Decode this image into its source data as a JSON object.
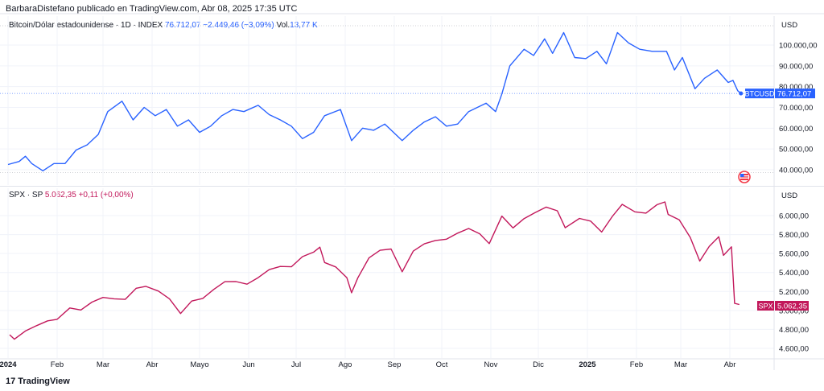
{
  "header": {
    "attribution": "BarbaraDistefano publicado en TradingView.com, Abr 08, 2025 17:35 UTC"
  },
  "btc_legend": {
    "name": "Bitcoin/Dólar estadounidense · 1D · INDEX",
    "value": "76.712,07",
    "change": "−2.449,46 (−3,09%)",
    "vol_label": "Vol.",
    "vol_value": "13,77 K"
  },
  "spx_legend": {
    "name": "SPX · SP",
    "value": "5.062,35",
    "change": "+0,11 (+0,00%)"
  },
  "btc_axis": {
    "currency": "USD",
    "ticks": [
      "100.000,00",
      "90.000,00",
      "80.000,00",
      "70.000,00",
      "60.000,00",
      "50.000,00",
      "40.000,00"
    ],
    "last_label": "BTCUSD",
    "last_value": "76.712,07"
  },
  "spx_axis": {
    "currency": "USD",
    "ticks": [
      "6.000,00",
      "5.800,00",
      "5.600,00",
      "5.400,00",
      "5.200,00",
      "5.000,00",
      "4.800,00",
      "4.600,00"
    ],
    "last_label": "SPX",
    "last_value": "5.062,35"
  },
  "x_axis": {
    "labels": [
      "2024",
      "Feb",
      "Mar",
      "Abr",
      "Mayo",
      "Jun",
      "Jul",
      "Ago",
      "Sep",
      "Oct",
      "Nov",
      "Dic",
      "2025",
      "Feb",
      "Mar",
      "Abr"
    ]
  },
  "footer": {
    "logo_mark": "17",
    "logo_text": "TradingView"
  },
  "colors": {
    "btc": "#2962ff",
    "spx": "#c2185b",
    "grid": "#f0f3fa",
    "axis_border": "#e0e3eb"
  },
  "chart_data": [
    {
      "type": "line",
      "series": [
        {
          "name": "BTCUSD",
          "points": [
            [
              "2024-01-01",
              42500
            ],
            [
              "2024-01-08",
              44000
            ],
            [
              "2024-01-12",
              46500
            ],
            [
              "2024-01-16",
              43000
            ],
            [
              "2024-01-23",
              39500
            ],
            [
              "2024-01-30",
              43000
            ],
            [
              "2024-02-06",
              43000
            ],
            [
              "2024-02-13",
              49500
            ],
            [
              "2024-02-20",
              52000
            ],
            [
              "2024-02-27",
              57000
            ],
            [
              "2024-03-04",
              68000
            ],
            [
              "2024-03-13",
              73000
            ],
            [
              "2024-03-20",
              64000
            ],
            [
              "2024-03-27",
              70000
            ],
            [
              "2024-04-03",
              66000
            ],
            [
              "2024-04-10",
              69000
            ],
            [
              "2024-04-17",
              61000
            ],
            [
              "2024-04-24",
              64000
            ],
            [
              "2024-05-01",
              58000
            ],
            [
              "2024-05-08",
              61000
            ],
            [
              "2024-05-15",
              66000
            ],
            [
              "2024-05-22",
              69000
            ],
            [
              "2024-05-29",
              68000
            ],
            [
              "2024-06-07",
              71000
            ],
            [
              "2024-06-14",
              66500
            ],
            [
              "2024-06-21",
              64000
            ],
            [
              "2024-06-28",
              61000
            ],
            [
              "2024-07-05",
              55000
            ],
            [
              "2024-07-12",
              58000
            ],
            [
              "2024-07-19",
              66000
            ],
            [
              "2024-07-29",
              69000
            ],
            [
              "2024-08-05",
              54000
            ],
            [
              "2024-08-12",
              60000
            ],
            [
              "2024-08-19",
              59000
            ],
            [
              "2024-08-26",
              62000
            ],
            [
              "2024-09-06",
              54000
            ],
            [
              "2024-09-13",
              59000
            ],
            [
              "2024-09-20",
              63000
            ],
            [
              "2024-09-27",
              65500
            ],
            [
              "2024-10-04",
              61000
            ],
            [
              "2024-10-11",
              62000
            ],
            [
              "2024-10-18",
              68000
            ],
            [
              "2024-10-29",
              72000
            ],
            [
              "2024-11-04",
              68000
            ],
            [
              "2024-11-08",
              76500
            ],
            [
              "2024-11-13",
              90000
            ],
            [
              "2024-11-22",
              98000
            ],
            [
              "2024-11-28",
              95000
            ],
            [
              "2024-12-05",
              103000
            ],
            [
              "2024-12-10",
              96000
            ],
            [
              "2024-12-17",
              106000
            ],
            [
              "2024-12-24",
              94000
            ],
            [
              "2024-12-31",
              93500
            ],
            [
              "2025-01-07",
              97000
            ],
            [
              "2025-01-13",
              91000
            ],
            [
              "2025-01-20",
              106000
            ],
            [
              "2025-01-27",
              101000
            ],
            [
              "2025-02-03",
              98000
            ],
            [
              "2025-02-11",
              97000
            ],
            [
              "2025-02-20",
              97000
            ],
            [
              "2025-02-25",
              88000
            ],
            [
              "2025-03-02",
              94000
            ],
            [
              "2025-03-10",
              79000
            ],
            [
              "2025-03-16",
              84000
            ],
            [
              "2025-03-24",
              88000
            ],
            [
              "2025-03-31",
              82000
            ],
            [
              "2025-04-03",
              83000
            ],
            [
              "2025-04-06",
              78000
            ],
            [
              "2025-04-08",
              76712.07
            ]
          ]
        }
      ],
      "ylim": [
        38000,
        108000
      ],
      "grid": true
    },
    {
      "type": "line",
      "series": [
        {
          "name": "SPX",
          "points": [
            [
              "2024-01-02",
              4743
            ],
            [
              "2024-01-05",
              4697
            ],
            [
              "2024-01-12",
              4783
            ],
            [
              "2024-01-19",
              4839
            ],
            [
              "2024-01-26",
              4890
            ],
            [
              "2024-02-01",
              4906
            ],
            [
              "2024-02-09",
              5026
            ],
            [
              "2024-02-16",
              5005
            ],
            [
              "2024-02-23",
              5088
            ],
            [
              "2024-03-01",
              5137
            ],
            [
              "2024-03-08",
              5123
            ],
            [
              "2024-03-15",
              5117
            ],
            [
              "2024-03-22",
              5234
            ],
            [
              "2024-03-28",
              5254
            ],
            [
              "2024-04-05",
              5204
            ],
            [
              "2024-04-12",
              5123
            ],
            [
              "2024-04-19",
              4967
            ],
            [
              "2024-04-26",
              5099
            ],
            [
              "2024-05-03",
              5127
            ],
            [
              "2024-05-10",
              5222
            ],
            [
              "2024-05-17",
              5303
            ],
            [
              "2024-05-24",
              5304
            ],
            [
              "2024-05-31",
              5277
            ],
            [
              "2024-06-07",
              5346
            ],
            [
              "2024-06-14",
              5431
            ],
            [
              "2024-06-21",
              5464
            ],
            [
              "2024-06-28",
              5460
            ],
            [
              "2024-07-05",
              5567
            ],
            [
              "2024-07-12",
              5615
            ],
            [
              "2024-07-16",
              5667
            ],
            [
              "2024-07-19",
              5505
            ],
            [
              "2024-07-26",
              5459
            ],
            [
              "2024-08-02",
              5346
            ],
            [
              "2024-08-05",
              5186
            ],
            [
              "2024-08-09",
              5344
            ],
            [
              "2024-08-16",
              5554
            ],
            [
              "2024-08-23",
              5634
            ],
            [
              "2024-08-30",
              5648
            ],
            [
              "2024-09-06",
              5408
            ],
            [
              "2024-09-13",
              5626
            ],
            [
              "2024-09-20",
              5702
            ],
            [
              "2024-09-27",
              5738
            ],
            [
              "2024-10-04",
              5751
            ],
            [
              "2024-10-11",
              5815
            ],
            [
              "2024-10-18",
              5864
            ],
            [
              "2024-10-25",
              5808
            ],
            [
              "2024-10-31",
              5705
            ],
            [
              "2024-11-08",
              5995
            ],
            [
              "2024-11-15",
              5870
            ],
            [
              "2024-11-22",
              5969
            ],
            [
              "2024-11-29",
              6032
            ],
            [
              "2024-12-06",
              6090
            ],
            [
              "2024-12-13",
              6051
            ],
            [
              "2024-12-18",
              5872
            ],
            [
              "2024-12-27",
              5970
            ],
            [
              "2025-01-03",
              5942
            ],
            [
              "2025-01-10",
              5827
            ],
            [
              "2025-01-17",
              5997
            ],
            [
              "2025-01-23",
              6119
            ],
            [
              "2025-01-31",
              6040
            ],
            [
              "2025-02-07",
              6026
            ],
            [
              "2025-02-14",
              6115
            ],
            [
              "2025-02-19",
              6144
            ],
            [
              "2025-02-21",
              6013
            ],
            [
              "2025-02-28",
              5955
            ],
            [
              "2025-03-07",
              5770
            ],
            [
              "2025-03-13",
              5521
            ],
            [
              "2025-03-19",
              5675
            ],
            [
              "2025-03-25",
              5777
            ],
            [
              "2025-03-28",
              5581
            ],
            [
              "2025-04-02",
              5671
            ],
            [
              "2025-04-04",
              5074
            ],
            [
              "2025-04-07",
              5062.35
            ]
          ]
        }
      ],
      "ylim": [
        4560,
        6200
      ],
      "grid": true
    }
  ]
}
